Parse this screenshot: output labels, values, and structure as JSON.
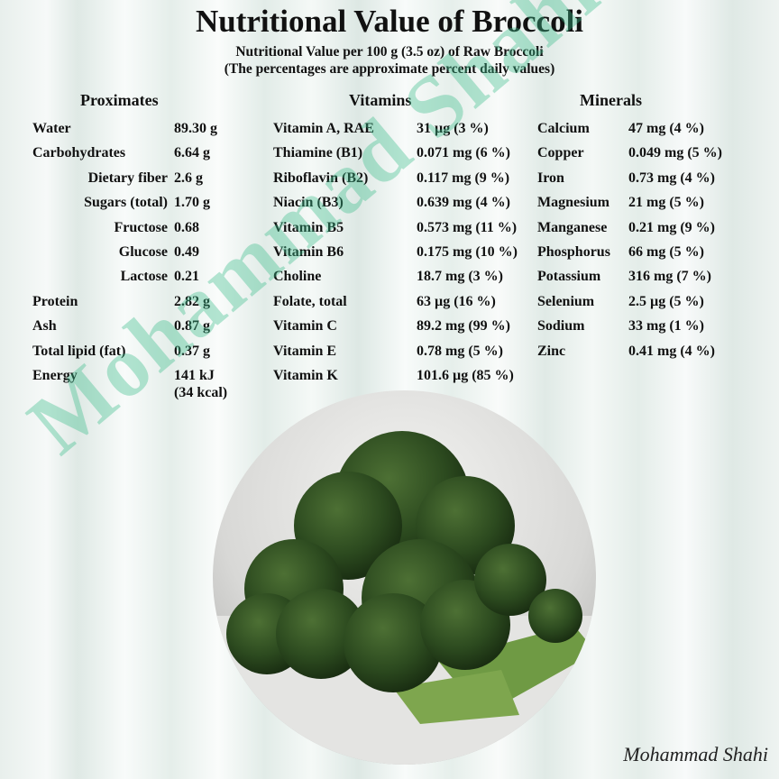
{
  "title": "Nutritional Value of Broccoli",
  "subtitle": "Nutritional Value per 100 g (3.5 oz) of Raw Broccoli",
  "note": "(The percentages are approximate percent daily values)",
  "proximates": {
    "heading": "Proximates",
    "rows": [
      {
        "label": "Water",
        "value": "89.30 g",
        "indent": false
      },
      {
        "label": "Carbohydrates",
        "value": "6.64 g",
        "indent": false
      },
      {
        "label": "Dietary fiber",
        "value": "2.6 g",
        "indent": true
      },
      {
        "label": "Sugars (total)",
        "value": "1.70 g",
        "indent": true
      },
      {
        "label": "Fructose",
        "value": "0.68",
        "indent": true
      },
      {
        "label": "Glucose",
        "value": "0.49",
        "indent": true
      },
      {
        "label": "Lactose",
        "value": "0.21",
        "indent": true
      },
      {
        "label": "Protein",
        "value": "2.82 g",
        "indent": false
      },
      {
        "label": "Ash",
        "value": "0.87 g",
        "indent": false
      },
      {
        "label": "Total lipid (fat)",
        "value": "0.37 g",
        "indent": false
      },
      {
        "label": "Energy",
        "value": "141 kJ",
        "value2": "(34 kcal)",
        "indent": false
      }
    ]
  },
  "vitamins": {
    "heading": "Vitamins",
    "rows": [
      {
        "label": "Vitamin A, RAE",
        "value": "31 µg (3 %)"
      },
      {
        "label": "Thiamine (B1)",
        "value": "0.071 mg (6 %)"
      },
      {
        "label": "Riboflavin (B2)",
        "value": "0.117 mg (9 %)"
      },
      {
        "label": "Niacin (B3)",
        "value": "0.639 mg (4 %)"
      },
      {
        "label": "Vitamin B5",
        "value": "0.573 mg (11 %)"
      },
      {
        "label": "Vitamin B6",
        "value": "0.175 mg (10 %)"
      },
      {
        "label": "Choline",
        "value": "18.7 mg (3 %)"
      },
      {
        "label": "Folate, total",
        "value": "63 µg (16 %)"
      },
      {
        "label": "Vitamin C",
        "value": "89.2 mg (99 %)"
      },
      {
        "label": "Vitamin E",
        "value": "0.78 mg (5 %)"
      },
      {
        "label": "Vitamin K",
        "value": "101.6 µg (85 %)"
      }
    ]
  },
  "minerals": {
    "heading": "Minerals",
    "rows": [
      {
        "label": "Calcium",
        "value": "47 mg (4 %)"
      },
      {
        "label": "Copper",
        "value": "0.049 mg (5 %)"
      },
      {
        "label": "Iron",
        "value": "0.73 mg (4 %)"
      },
      {
        "label": "Magnesium",
        "value": "21 mg (5 %)"
      },
      {
        "label": "Manganese",
        "value": "0.21 mg (9 %)"
      },
      {
        "label": "Phosphorus",
        "value": "66 mg (5 %)"
      },
      {
        "label": "Potassium",
        "value": "316 mg (7 %)"
      },
      {
        "label": "Selenium",
        "value": "2.5 µg (5 %)"
      },
      {
        "label": "Sodium",
        "value": "33 mg (1 %)"
      },
      {
        "label": "Zinc",
        "value": "0.41 mg (4 %)"
      }
    ]
  },
  "watermark": "Mohammad Shahi",
  "signature": "Mohammad Shahi",
  "colors": {
    "watermark": "#3cbe8c",
    "broccoli": "#2f4a22"
  }
}
